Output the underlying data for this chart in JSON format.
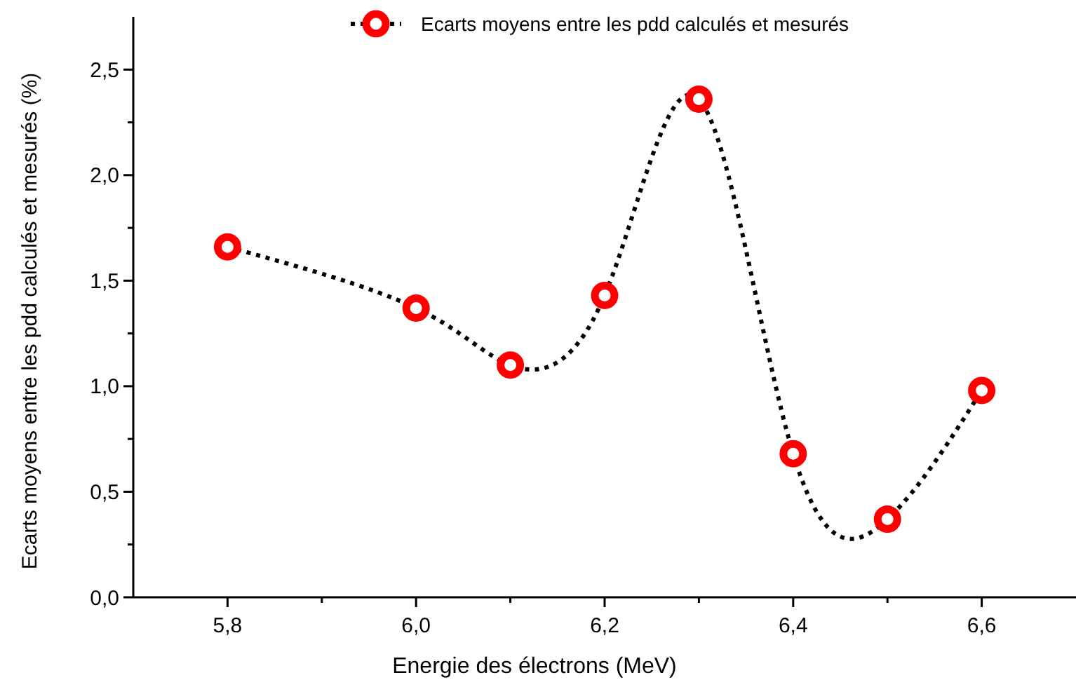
{
  "chart_data": {
    "type": "line",
    "xlabel": "Energie des électrons (MeV)",
    "ylabel": "Ecarts moyens entre les pdd calculés et mesurés (%)",
    "x": [
      5.8,
      6.0,
      6.1,
      6.2,
      6.3,
      6.4,
      6.5,
      6.6
    ],
    "series": [
      {
        "name": "Ecarts moyens entre les pdd calculés et mesurés",
        "color": "#ff0000",
        "values": [
          1.66,
          1.37,
          1.1,
          1.43,
          2.36,
          0.68,
          0.37,
          0.98
        ]
      }
    ],
    "xlim": [
      5.7,
      6.7
    ],
    "xticks": [
      {
        "value": 5.8,
        "label": "5,8"
      },
      {
        "value": 5.9,
        "label": null
      },
      {
        "value": 6.0,
        "label": "6,0"
      },
      {
        "value": 6.1,
        "label": null
      },
      {
        "value": 6.2,
        "label": "6,2"
      },
      {
        "value": 6.3,
        "label": null
      },
      {
        "value": 6.4,
        "label": "6,4"
      },
      {
        "value": 6.5,
        "label": null
      },
      {
        "value": 6.6,
        "label": "6,6"
      }
    ],
    "ylim": [
      0,
      2.75
    ],
    "yticks": [
      {
        "value": 0,
        "label": "0,0"
      },
      {
        "value": 0.25,
        "label": null
      },
      {
        "value": 0.5,
        "label": "0,5"
      },
      {
        "value": 0.75,
        "label": null
      },
      {
        "value": 1.0,
        "label": "1,0"
      },
      {
        "value": 1.25,
        "label": null
      },
      {
        "value": 1.5,
        "label": "1,5"
      },
      {
        "value": 1.75,
        "label": null
      },
      {
        "value": 2.0,
        "label": "2,0"
      },
      {
        "value": 2.25,
        "label": null
      },
      {
        "value": 2.5,
        "label": "2,5"
      }
    ],
    "grid": false,
    "legend": "top right",
    "marker": "circle",
    "line_style": "dotted"
  }
}
